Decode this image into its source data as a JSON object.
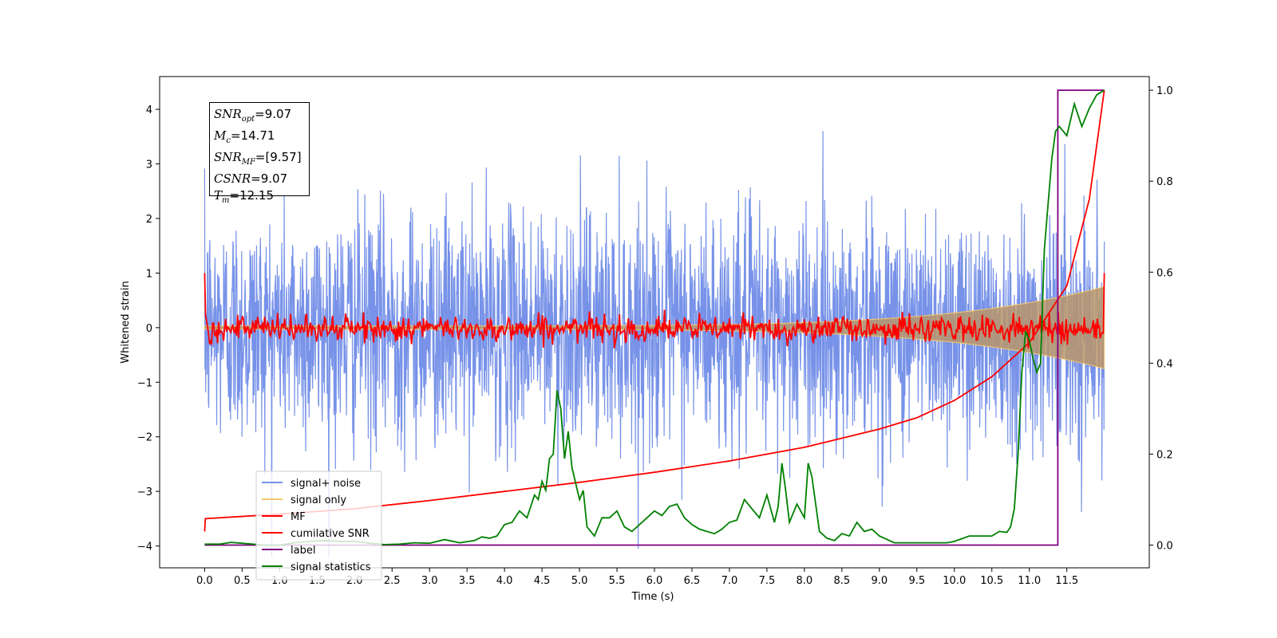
{
  "chart_data": {
    "type": "line",
    "xlabel": "Time (s)",
    "ylabel_left": "Whitened strain",
    "ylabel_right": "",
    "xlim": [
      -0.6,
      12.6
    ],
    "ylim_left": [
      -4.4,
      4.6
    ],
    "ylim_right": [
      -0.05,
      1.03
    ],
    "x_ticks": [
      0.0,
      0.5,
      1.0,
      1.5,
      2.0,
      2.5,
      3.0,
      3.5,
      4.0,
      4.5,
      5.0,
      5.5,
      6.0,
      6.5,
      7.0,
      7.5,
      8.0,
      8.5,
      9.0,
      9.5,
      10.0,
      10.5,
      11.0,
      11.5
    ],
    "x_tick_labels": [
      "0.0",
      "0.5",
      "1.0",
      "1.5",
      "2.0",
      "2.5",
      "3.0",
      "3.5",
      "4.0",
      "4.5",
      "5.0",
      "5.5",
      "6.0",
      "6.5",
      "7.0",
      "7.5",
      "8.0",
      "8.5",
      "9.0",
      "9.5",
      "10.0",
      "10.5",
      "11.0",
      "11.5"
    ],
    "y_left_ticks": [
      -4,
      -3,
      -2,
      -1,
      0,
      1,
      2,
      3,
      4
    ],
    "y_left_tick_labels": [
      "−4",
      "−3",
      "−2",
      "−1",
      "0",
      "1",
      "2",
      "3",
      "4"
    ],
    "y_right_ticks": [
      0.0,
      0.2,
      0.4,
      0.6,
      0.8,
      1.0
    ],
    "y_right_tick_labels": [
      "0.0",
      "0.2",
      "0.4",
      "0.6",
      "0.8",
      "1.0"
    ],
    "grid": false,
    "legend_placement": "lower-left",
    "series": [
      {
        "name": "signal+ noise",
        "axis": "left",
        "color": "#7792e8",
        "kind": "noise_band",
        "x_range": [
          0.0,
          12.0
        ],
        "std": 1.05,
        "max_abs": 4.2
      },
      {
        "name": "signal only",
        "axis": "left",
        "color": "#f5c86e",
        "kind": "chirp_envelope",
        "x_range": [
          0.0,
          12.0
        ],
        "amplitude_start": 0.03,
        "amplitude_end": 0.75
      },
      {
        "name": "MF",
        "axis": "left",
        "color": "#ff0000",
        "kind": "matched_filter",
        "x_range": [
          0.0,
          12.0
        ],
        "start_value": 1.0,
        "end_value": 1.0,
        "jitter": 0.12
      },
      {
        "name": "cumilative SNR",
        "axis": "right",
        "color": "#ff0000",
        "x": [
          0.0,
          0.01,
          1.0,
          2.0,
          3.0,
          4.0,
          5.0,
          6.0,
          7.0,
          8.0,
          9.0,
          9.5,
          10.0,
          10.5,
          11.0,
          11.5,
          11.8,
          12.0
        ],
        "values": [
          0.03,
          0.058,
          0.068,
          0.08,
          0.098,
          0.118,
          0.138,
          0.16,
          0.185,
          0.215,
          0.255,
          0.28,
          0.318,
          0.37,
          0.445,
          0.57,
          0.76,
          1.0
        ]
      },
      {
        "name": "label",
        "axis": "right",
        "color": "#800080",
        "x": [
          0.0,
          11.32,
          11.32,
          11.38,
          11.38,
          12.0
        ],
        "values": [
          0.0,
          0.0,
          0.0,
          0.0,
          1.0,
          1.0
        ]
      },
      {
        "name": "signal statistics",
        "axis": "right",
        "color": "#008000",
        "x": [
          0.0,
          0.2,
          0.35,
          0.5,
          0.8,
          1.0,
          1.2,
          1.4,
          1.6,
          1.8,
          2.0,
          2.2,
          2.4,
          2.6,
          2.8,
          3.0,
          3.2,
          3.4,
          3.6,
          3.7,
          3.8,
          3.9,
          4.0,
          4.1,
          4.2,
          4.3,
          4.4,
          4.45,
          4.5,
          4.55,
          4.6,
          4.65,
          4.7,
          4.75,
          4.8,
          4.85,
          4.9,
          5.0,
          5.05,
          5.1,
          5.2,
          5.3,
          5.4,
          5.5,
          5.6,
          5.7,
          5.8,
          5.9,
          6.0,
          6.1,
          6.2,
          6.3,
          6.4,
          6.5,
          6.6,
          6.7,
          6.8,
          6.9,
          7.0,
          7.1,
          7.2,
          7.3,
          7.4,
          7.5,
          7.6,
          7.65,
          7.7,
          7.75,
          7.8,
          7.9,
          8.0,
          8.05,
          8.1,
          8.2,
          8.3,
          8.4,
          8.5,
          8.6,
          8.7,
          8.8,
          8.9,
          9.0,
          9.2,
          9.5,
          9.9,
          10.0,
          10.2,
          10.4,
          10.5,
          10.6,
          10.7,
          10.75,
          10.8,
          10.85,
          10.9,
          10.95,
          11.0,
          11.05,
          11.1,
          11.15,
          11.2,
          11.3,
          11.35,
          11.4,
          11.5,
          11.6,
          11.7,
          11.8,
          11.9,
          12.0
        ],
        "values": [
          0.002,
          0.002,
          0.006,
          0.004,
          0.0,
          0.0,
          0.005,
          0.008,
          0.01,
          0.008,
          0.008,
          0.004,
          0.001,
          0.002,
          0.005,
          0.004,
          0.012,
          0.005,
          0.01,
          0.018,
          0.015,
          0.02,
          0.045,
          0.05,
          0.075,
          0.06,
          0.11,
          0.1,
          0.14,
          0.12,
          0.19,
          0.2,
          0.34,
          0.3,
          0.19,
          0.25,
          0.17,
          0.1,
          0.12,
          0.04,
          0.02,
          0.06,
          0.06,
          0.075,
          0.04,
          0.03,
          0.045,
          0.06,
          0.075,
          0.065,
          0.085,
          0.09,
          0.06,
          0.045,
          0.035,
          0.03,
          0.025,
          0.035,
          0.05,
          0.055,
          0.1,
          0.08,
          0.06,
          0.11,
          0.05,
          0.085,
          0.18,
          0.12,
          0.05,
          0.09,
          0.06,
          0.18,
          0.15,
          0.03,
          0.015,
          0.01,
          0.025,
          0.02,
          0.05,
          0.03,
          0.035,
          0.02,
          0.005,
          0.005,
          0.005,
          0.008,
          0.02,
          0.02,
          0.02,
          0.03,
          0.028,
          0.04,
          0.08,
          0.2,
          0.38,
          0.47,
          0.45,
          0.41,
          0.38,
          0.4,
          0.65,
          0.85,
          0.91,
          0.92,
          0.9,
          0.97,
          0.92,
          0.96,
          0.99,
          1.0
        ]
      }
    ],
    "info_box": {
      "snr_opt": "=9.07",
      "mc": "=14.71",
      "snr_mf": "=[9.57]",
      "csnr": "=9.07",
      "tm": "=12.15"
    }
  },
  "legend": {
    "items": [
      {
        "label": "signal+ noise",
        "color": "#7792e8"
      },
      {
        "label": "signal only",
        "color": "#f5c86e"
      },
      {
        "label": "MF",
        "color": "#ff0000"
      },
      {
        "label": "cumilative SNR",
        "color": "#ff0000"
      },
      {
        "label": "label",
        "color": "#800080"
      },
      {
        "label": "signal statistics",
        "color": "#008000"
      }
    ]
  }
}
